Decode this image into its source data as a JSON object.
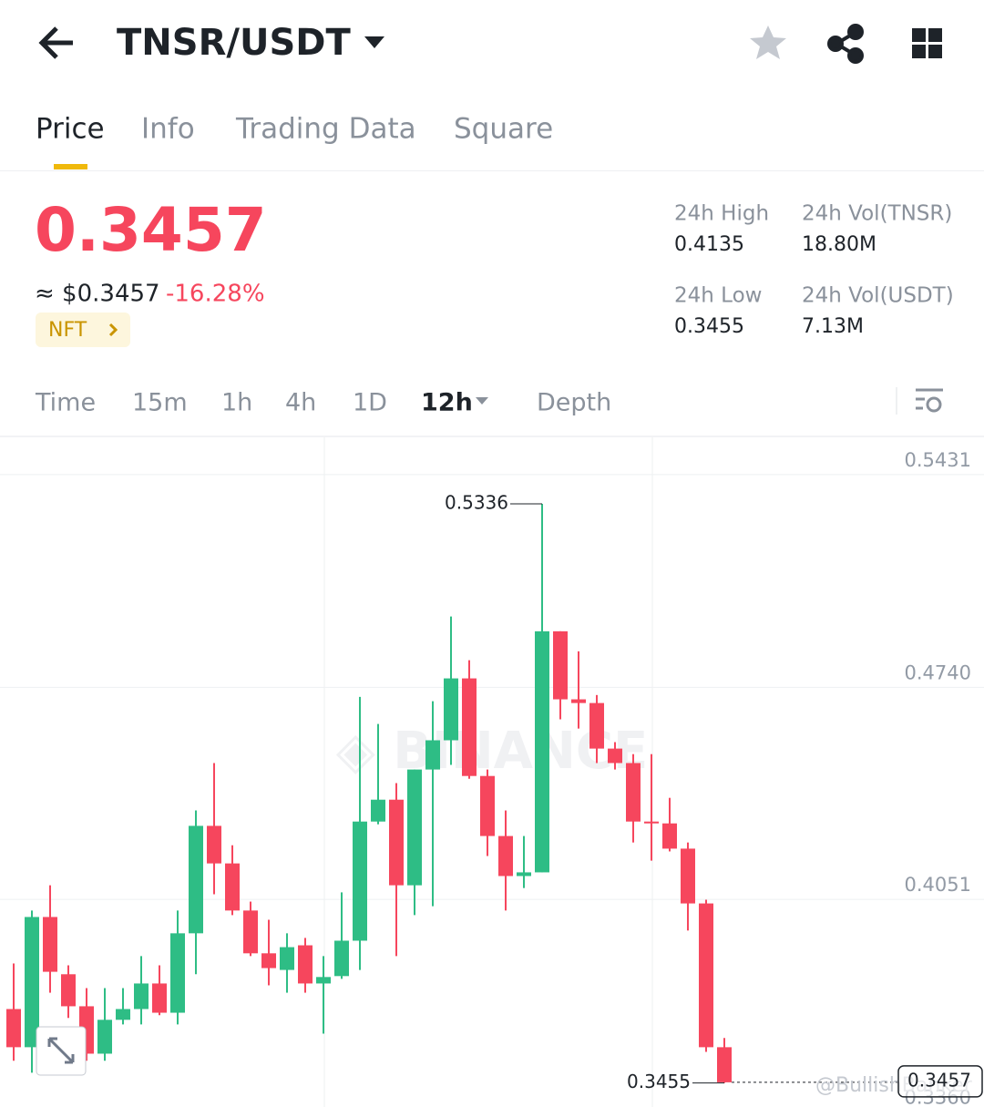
{
  "header": {
    "title": "TNSR/USDT"
  },
  "tabs": [
    "Price",
    "Info",
    "Trading Data",
    "Square"
  ],
  "ticker": {
    "price": "0.3457",
    "usd_price": "≈ $0.3457",
    "change": "-16.28%",
    "tag": "NFT",
    "stats": [
      {
        "label": "24h High",
        "value": "0.4135"
      },
      {
        "label": "24h Vol(TNSR)",
        "value": "18.80M"
      },
      {
        "label": "24h Low",
        "value": "0.3455"
      },
      {
        "label": "24h Vol(USDT)",
        "value": "7.13M"
      }
    ]
  },
  "intervals": [
    "Time",
    "15m",
    "1h",
    "4h",
    "1D",
    "12h",
    "Depth"
  ],
  "watermark": "@BullishBanker",
  "chart_data": {
    "type": "candlestick",
    "up_color": "#2ebd85",
    "down_color": "#f6465d",
    "open": [
      0.3695,
      0.3571,
      0.3994,
      0.3808,
      0.3704,
      0.355,
      0.366,
      0.3695,
      0.3778,
      0.3683,
      0.3941,
      0.429,
      0.4168,
      0.4015,
      0.3876,
      0.3822,
      0.3902,
      0.3778,
      0.3802,
      0.3917,
      0.4304,
      0.4375,
      0.4097,
      0.4473,
      0.4568,
      0.4769,
      0.4452,
      0.4257,
      0.4127,
      0.4139,
      0.4922,
      0.4701,
      0.4689,
      0.4541,
      0.4494,
      0.4304,
      0.4298,
      0.4216,
      0.4038,
      0.3571
    ],
    "high": [
      0.3843,
      0.4015,
      0.4097,
      0.3837,
      0.3763,
      0.3763,
      0.3763,
      0.3867,
      0.3837,
      0.4015,
      0.434,
      0.4494,
      0.4227,
      0.4044,
      0.3985,
      0.3941,
      0.3926,
      0.3867,
      0.4074,
      0.4709,
      0.4621,
      0.4429,
      0.4473,
      0.4695,
      0.497,
      0.4828,
      0.4473,
      0.434,
      0.4257,
      0.5336,
      0.4922,
      0.4857,
      0.4715,
      0.4562,
      0.4523,
      0.4523,
      0.4381,
      0.4236,
      0.405,
      0.3601
    ],
    "low": [
      0.3527,
      0.3488,
      0.3748,
      0.3666,
      0.3527,
      0.3527,
      0.3645,
      0.3645,
      0.3675,
      0.3645,
      0.3808,
      0.4068,
      0.4,
      0.3867,
      0.3772,
      0.3748,
      0.3748,
      0.3615,
      0.3793,
      0.3822,
      0.4295,
      0.3867,
      0.4,
      0.4029,
      0.4488,
      0.4443,
      0.4192,
      0.4015,
      0.4088,
      0.4139,
      0.4636,
      0.4606,
      0.4494,
      0.4473,
      0.4236,
      0.4177,
      0.4207,
      0.395,
      0.3556,
      0.3455
    ],
    "close": [
      0.3571,
      0.3994,
      0.3816,
      0.3704,
      0.355,
      0.366,
      0.3695,
      0.3778,
      0.3683,
      0.3941,
      0.429,
      0.4168,
      0.4015,
      0.3876,
      0.3828,
      0.3896,
      0.3778,
      0.3799,
      0.3917,
      0.4304,
      0.4375,
      0.4097,
      0.4473,
      0.4568,
      0.4769,
      0.4452,
      0.4257,
      0.4127,
      0.4139,
      0.4922,
      0.4701,
      0.4689,
      0.4541,
      0.4494,
      0.4304,
      0.4298,
      0.4216,
      0.4038,
      0.3571,
      0.3457
    ],
    "ylim": [
      0.3362,
      0.5552
    ],
    "yticks": [
      0.5431,
      {
        "value": 0.474,
        "label": "0.4740"
      },
      0.4051,
      {
        "value": 0.336,
        "label": "0.3360"
      }
    ],
    "high_label": 0.5336,
    "low_label": 0.3455,
    "last_price": 0.3457
  }
}
